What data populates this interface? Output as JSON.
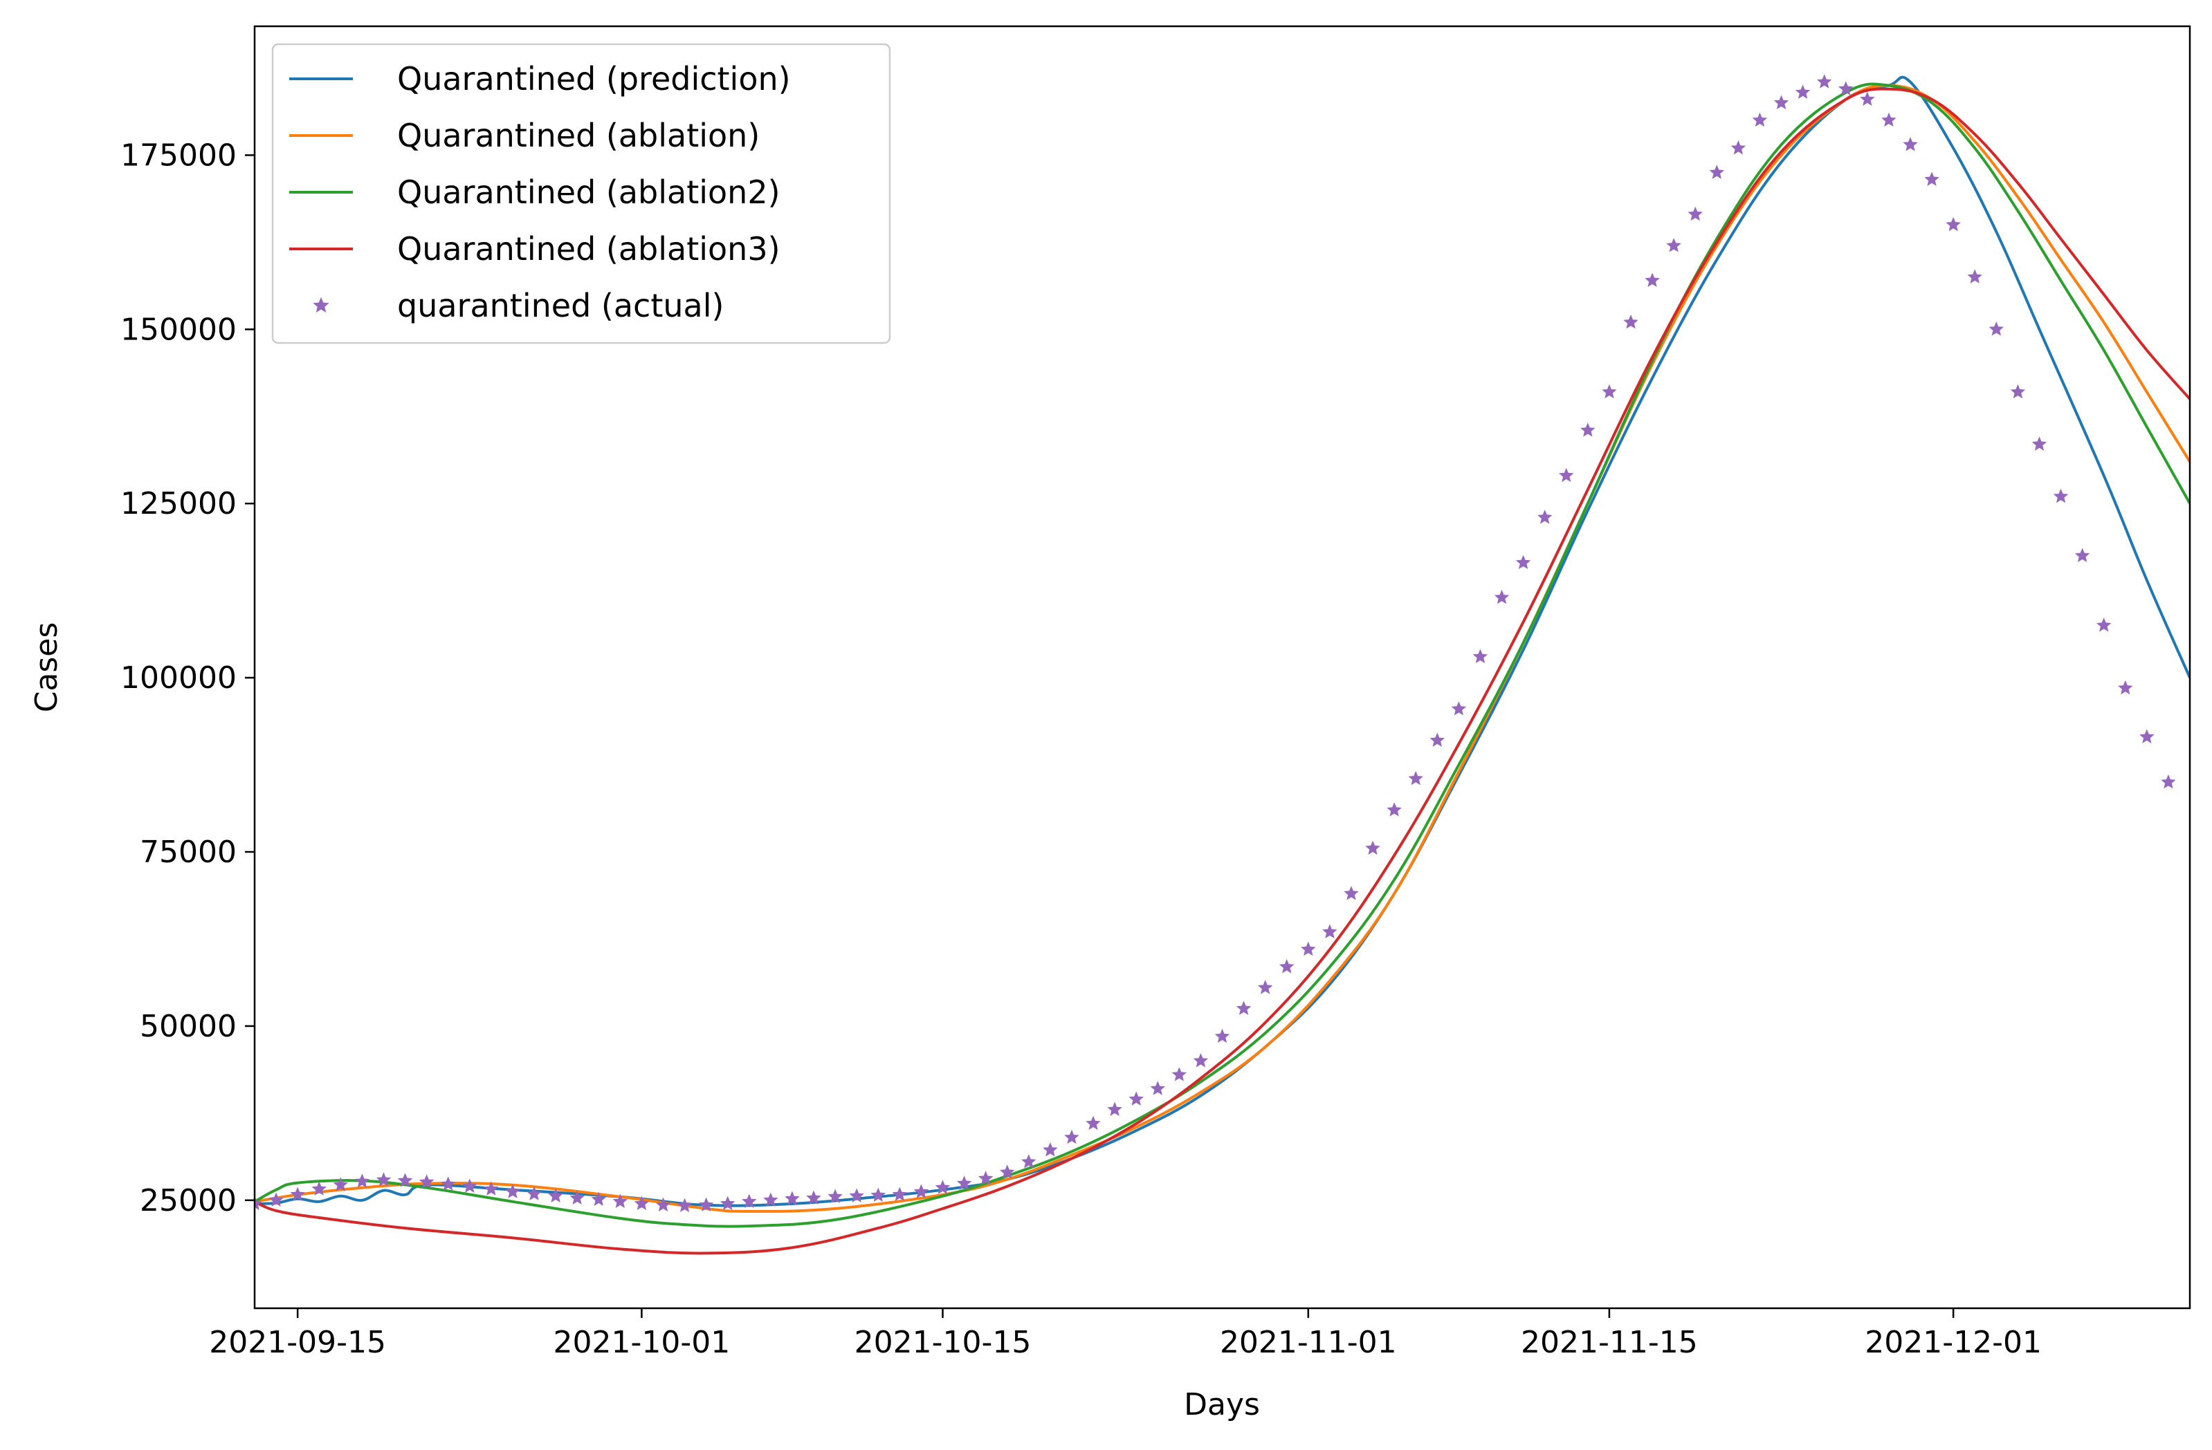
{
  "chart_data": {
    "type": "line",
    "xlabel": "Days",
    "ylabel": "Cases",
    "xlim": [
      "2021-09-13",
      "2021-12-12"
    ],
    "ylim": [
      9500,
      193500
    ],
    "x_ticks": [
      "2021-09-15",
      "2021-10-01",
      "2021-10-15",
      "2021-11-01",
      "2021-11-15",
      "2021-12-01"
    ],
    "y_ticks": [
      25000,
      50000,
      75000,
      100000,
      125000,
      150000,
      175000
    ],
    "y_tick_labels": [
      "25000",
      "50000",
      "75000",
      "100000",
      "125000",
      "150000",
      "175000"
    ],
    "legend_position": "top-left",
    "series": [
      {
        "name": "Quarantined (prediction)",
        "style": "line",
        "color": "#1f77b4",
        "points": [
          [
            "2021-09-13",
            24500
          ],
          [
            "2021-09-14",
            24600
          ],
          [
            "2021-09-15",
            25200
          ],
          [
            "2021-09-16",
            24800
          ],
          [
            "2021-09-17",
            25600
          ],
          [
            "2021-09-18",
            25000
          ],
          [
            "2021-09-19",
            26400
          ],
          [
            "2021-09-20",
            25800
          ],
          [
            "2021-09-21",
            27200
          ],
          [
            "2021-09-25",
            26500
          ],
          [
            "2021-09-30",
            25500
          ],
          [
            "2021-10-04",
            24300
          ],
          [
            "2021-10-08",
            24500
          ],
          [
            "2021-10-12",
            25500
          ],
          [
            "2021-10-15",
            26500
          ],
          [
            "2021-10-18",
            28000
          ],
          [
            "2021-10-21",
            31000
          ],
          [
            "2021-10-24",
            35000
          ],
          [
            "2021-10-27",
            40000
          ],
          [
            "2021-10-30",
            47000
          ],
          [
            "2021-11-02",
            56000
          ],
          [
            "2021-11-05",
            69000
          ],
          [
            "2021-11-08",
            86000
          ],
          [
            "2021-11-11",
            104000
          ],
          [
            "2021-11-14",
            124000
          ],
          [
            "2021-11-17",
            143000
          ],
          [
            "2021-11-20",
            160000
          ],
          [
            "2021-11-23",
            174000
          ],
          [
            "2021-11-26",
            183000
          ],
          [
            "2021-11-28",
            185000
          ],
          [
            "2021-11-29",
            185500
          ],
          [
            "2021-12-01",
            176000
          ],
          [
            "2021-12-03",
            164000
          ],
          [
            "2021-12-05",
            150000
          ],
          [
            "2021-12-08",
            129000
          ],
          [
            "2021-12-10",
            114000
          ],
          [
            "2021-12-12",
            100000
          ]
        ]
      },
      {
        "name": "Quarantined (ablation)",
        "style": "line",
        "color": "#ff7f0e",
        "points": [
          [
            "2021-09-13",
            24800
          ],
          [
            "2021-09-15",
            25800
          ],
          [
            "2021-09-18",
            26800
          ],
          [
            "2021-09-21",
            27400
          ],
          [
            "2021-09-25",
            27200
          ],
          [
            "2021-09-30",
            25500
          ],
          [
            "2021-10-04",
            23800
          ],
          [
            "2021-10-06",
            23400
          ],
          [
            "2021-10-10",
            23800
          ],
          [
            "2021-10-15",
            25800
          ],
          [
            "2021-10-18",
            28000
          ],
          [
            "2021-10-21",
            31500
          ],
          [
            "2021-10-24",
            35500
          ],
          [
            "2021-10-27",
            40500
          ],
          [
            "2021-10-30",
            47000
          ],
          [
            "2021-11-02",
            56500
          ],
          [
            "2021-11-05",
            69000
          ],
          [
            "2021-11-08",
            86500
          ],
          [
            "2021-11-11",
            105000
          ],
          [
            "2021-11-14",
            125000
          ],
          [
            "2021-11-17",
            145000
          ],
          [
            "2021-11-20",
            162000
          ],
          [
            "2021-11-23",
            175000
          ],
          [
            "2021-11-26",
            183000
          ],
          [
            "2021-11-28",
            185000
          ],
          [
            "2021-11-30",
            183000
          ],
          [
            "2021-12-02",
            177000
          ],
          [
            "2021-12-04",
            169000
          ],
          [
            "2021-12-06",
            160000
          ],
          [
            "2021-12-08",
            151000
          ],
          [
            "2021-12-10",
            141000
          ],
          [
            "2021-12-12",
            131000
          ]
        ]
      },
      {
        "name": "Quarantined (ablation2)",
        "style": "line",
        "color": "#2ca02c",
        "points": [
          [
            "2021-09-13",
            24800
          ],
          [
            "2021-09-14",
            26500
          ],
          [
            "2021-09-15",
            27500
          ],
          [
            "2021-09-18",
            27800
          ],
          [
            "2021-09-21",
            26800
          ],
          [
            "2021-09-25",
            24800
          ],
          [
            "2021-09-30",
            22400
          ],
          [
            "2021-10-03",
            21500
          ],
          [
            "2021-10-06",
            21300
          ],
          [
            "2021-10-10",
            22200
          ],
          [
            "2021-10-15",
            25600
          ],
          [
            "2021-10-18",
            28500
          ],
          [
            "2021-10-21",
            32000
          ],
          [
            "2021-10-24",
            36500
          ],
          [
            "2021-10-27",
            42000
          ],
          [
            "2021-10-30",
            49000
          ],
          [
            "2021-11-02",
            58500
          ],
          [
            "2021-11-05",
            71000
          ],
          [
            "2021-11-08",
            87500
          ],
          [
            "2021-11-11",
            105000
          ],
          [
            "2021-11-14",
            125000
          ],
          [
            "2021-11-17",
            145500
          ],
          [
            "2021-11-20",
            163000
          ],
          [
            "2021-11-23",
            176500
          ],
          [
            "2021-11-26",
            184000
          ],
          [
            "2021-11-28",
            185000
          ],
          [
            "2021-11-30",
            182500
          ],
          [
            "2021-12-02",
            176000
          ],
          [
            "2021-12-04",
            167000
          ],
          [
            "2021-12-06",
            157000
          ],
          [
            "2021-12-08",
            147000
          ],
          [
            "2021-12-10",
            136000
          ],
          [
            "2021-12-12",
            125000
          ]
        ]
      },
      {
        "name": "Quarantined (ablation3)",
        "style": "line",
        "color": "#d62728",
        "points": [
          [
            "2021-09-13",
            24800
          ],
          [
            "2021-09-14",
            23500
          ],
          [
            "2021-09-16",
            22500
          ],
          [
            "2021-09-20",
            21000
          ],
          [
            "2021-09-25",
            19600
          ],
          [
            "2021-09-30",
            18000
          ],
          [
            "2021-10-04",
            17400
          ],
          [
            "2021-10-08",
            18200
          ],
          [
            "2021-10-12",
            21000
          ],
          [
            "2021-10-15",
            23800
          ],
          [
            "2021-10-18",
            27000
          ],
          [
            "2021-10-21",
            31000
          ],
          [
            "2021-10-24",
            36000
          ],
          [
            "2021-10-27",
            42500
          ],
          [
            "2021-10-30",
            50500
          ],
          [
            "2021-11-02",
            61000
          ],
          [
            "2021-11-05",
            74500
          ],
          [
            "2021-11-08",
            90500
          ],
          [
            "2021-11-11",
            108000
          ],
          [
            "2021-11-14",
            127000
          ],
          [
            "2021-11-17",
            146000
          ],
          [
            "2021-11-20",
            162500
          ],
          [
            "2021-11-23",
            175500
          ],
          [
            "2021-11-26",
            183000
          ],
          [
            "2021-11-28",
            184500
          ],
          [
            "2021-11-30",
            183000
          ],
          [
            "2021-12-02",
            178000
          ],
          [
            "2021-12-04",
            171000
          ],
          [
            "2021-12-06",
            163000
          ],
          [
            "2021-12-08",
            155000
          ],
          [
            "2021-12-10",
            147000
          ],
          [
            "2021-12-12",
            140000
          ]
        ]
      },
      {
        "name": "quarantined (actual)",
        "style": "marker",
        "marker": "star",
        "color": "#9467bd",
        "start_date": "2021-09-13",
        "values": [
          24500,
          25000,
          25800,
          26600,
          27200,
          27700,
          27900,
          27800,
          27600,
          27300,
          27000,
          26600,
          26200,
          25900,
          25600,
          25300,
          25100,
          24800,
          24500,
          24300,
          24200,
          24300,
          24500,
          24800,
          25000,
          25200,
          25300,
          25500,
          25600,
          25700,
          25800,
          26200,
          26800,
          27400,
          28100,
          29000,
          30500,
          32200,
          34000,
          36000,
          38000,
          39500,
          41000,
          43000,
          45000,
          48500,
          52500,
          55500,
          58500,
          61000,
          63500,
          69000,
          75500,
          81000,
          85500,
          91000,
          95500,
          103000,
          111500,
          116500,
          123000,
          129000,
          135500,
          141000,
          151000,
          157000,
          162000,
          166500,
          172500,
          176000,
          180000,
          182500,
          184000,
          185500,
          184500,
          183000,
          180000,
          176500,
          171500,
          165000,
          157500,
          150000,
          141000,
          133500,
          126000,
          117500,
          107500,
          98500,
          91500,
          85000
        ]
      }
    ]
  }
}
